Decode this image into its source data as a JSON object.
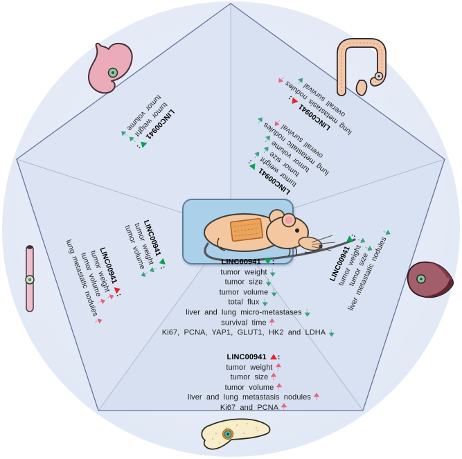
{
  "gene": "LINC00941",
  "palette": {
    "circle_fill": "#e6ecf8",
    "pentagon_fill": "#d9e2f2",
    "pentagon_edge": "#66739b",
    "divider_line": "#aeb9d2",
    "mouse_box_fill": "#abd0e9",
    "mouse_box_border": "#5e7e9e",
    "up_arrow": "#e4637d",
    "down_arrow": "#3aa17e",
    "up_triangle": "#e8232e",
    "down_triangle": "#00a550"
  },
  "organs": [
    {
      "name": "stomach"
    },
    {
      "name": "colon"
    },
    {
      "name": "liver"
    },
    {
      "name": "esophagus"
    },
    {
      "name": "pancreas"
    },
    {
      "name": "mouse"
    }
  ],
  "sections": {
    "stomach": {
      "organ": "stomach",
      "blocks": [
        {
          "title": "LINC00941",
          "tri": "down",
          "suffix": ":",
          "items": [
            {
              "label": "tumor weight",
              "dir": "down"
            },
            {
              "label": "tumor volume",
              "dir": "down"
            }
          ]
        }
      ]
    },
    "colorectal": {
      "organ": "colon",
      "blocks": [
        {
          "title": "LINC00941",
          "tri": "up",
          "suffix": ":",
          "items": [
            {
              "label": "lung metastasis nodules",
              "dir": "up"
            },
            {
              "label": "overall survival",
              "dir": "down"
            }
          ]
        },
        {
          "title": "LINC00941",
          "tri": "down",
          "suffix": ":",
          "items": [
            {
              "label": "tumor weight",
              "dir": "down"
            },
            {
              "label": "tumor size",
              "dir": "down"
            },
            {
              "label": "tumor volume",
              "dir": "down"
            },
            {
              "label": "lung metastatic nodules",
              "dir": "down"
            },
            {
              "label": "overall survival",
              "dir": "up"
            }
          ]
        }
      ]
    },
    "liver": {
      "organ": "liver",
      "blocks": [
        {
          "title": "LINC00941",
          "tri": "down",
          "suffix": ":",
          "items": [
            {
              "label": "tumor weight",
              "dir": "down"
            },
            {
              "label": "tumor size",
              "dir": "down"
            },
            {
              "label": "liver metastatic nodules",
              "dir": "down"
            }
          ]
        }
      ]
    },
    "esophagus": {
      "organ": "esophagus",
      "blocks": [
        {
          "title": "LINC00941",
          "tri": "down",
          "suffix": ":",
          "items": [
            {
              "label": "tumor weight",
              "dir": "down"
            },
            {
              "label": "tumor volume",
              "dir": "down"
            }
          ]
        },
        {
          "title": "LINC00941",
          "tri": "up",
          "suffix": ":",
          "items": [
            {
              "label": "tumor weight",
              "dir": "up"
            },
            {
              "label": "tumor volume",
              "dir": "up"
            },
            {
              "label": "lung metastatic nodules",
              "dir": "up"
            }
          ]
        }
      ]
    },
    "pancreas": {
      "organ": "pancreas",
      "blocks": [
        {
          "title": "LINC00941",
          "tri": "down",
          "suffix": ":",
          "items": [
            {
              "label": "tumor weight",
              "dir": "down"
            },
            {
              "label": "tumor size",
              "dir": "down"
            },
            {
              "label": "tumor volume",
              "dir": "down"
            },
            {
              "label": "total flux",
              "dir": "down"
            },
            {
              "label": "liver and lung micro-metastases",
              "dir": "down"
            },
            {
              "label": "survival time",
              "dir": "up"
            },
            {
              "label": "Ki67, PCNA, YAP1, GLUT1, HK2 and LDHA",
              "dir": "down"
            }
          ]
        },
        {
          "title": "LINC00941",
          "tri": "up",
          "suffix": ":",
          "items": [
            {
              "label": "tumor weight",
              "dir": "up"
            },
            {
              "label": "tumor size",
              "dir": "up"
            },
            {
              "label": "tumor volume",
              "dir": "up"
            },
            {
              "label": "liver and lung metastasis nodules",
              "dir": "up"
            },
            {
              "label": "Ki67 and PCNA",
              "dir": "up"
            }
          ]
        }
      ]
    }
  }
}
